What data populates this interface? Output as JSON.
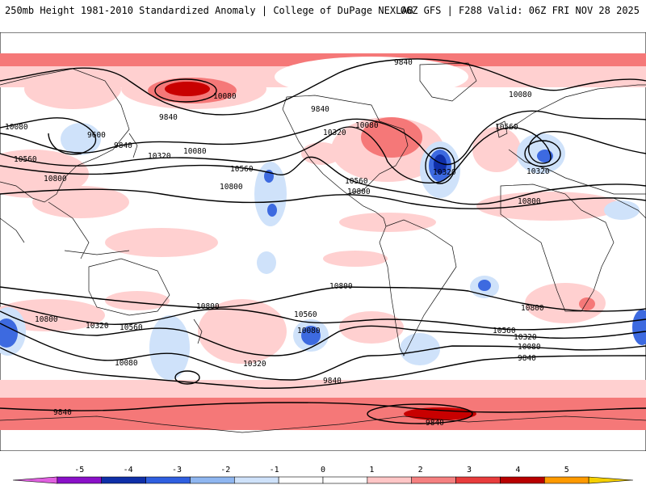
{
  "header": {
    "left": "250mb Height 1981-2010 Standardized Anomaly | College of DuPage NEXLAB",
    "right": "06Z GFS | F288 Valid: 06Z FRI NOV 28 2025"
  },
  "contours": {
    "labels": [
      {
        "id": "c1",
        "text": "9840"
      },
      {
        "id": "c2",
        "text": "10080"
      },
      {
        "id": "c3",
        "text": "9840"
      },
      {
        "id": "c4",
        "text": "10080"
      },
      {
        "id": "c5",
        "text": "9600"
      },
      {
        "id": "c6",
        "text": "9840"
      },
      {
        "id": "c7",
        "text": "10080"
      },
      {
        "id": "c8",
        "text": "10320"
      },
      {
        "id": "c9",
        "text": "10560"
      },
      {
        "id": "c10",
        "text": "10800"
      },
      {
        "id": "c11",
        "text": "10560"
      },
      {
        "id": "c12",
        "text": "10800"
      },
      {
        "id": "c13",
        "text": "9840"
      },
      {
        "id": "c14",
        "text": "10320"
      },
      {
        "id": "c15",
        "text": "10080"
      },
      {
        "id": "c16",
        "text": "10560"
      },
      {
        "id": "c17",
        "text": "10800"
      },
      {
        "id": "c18",
        "text": "10320"
      },
      {
        "id": "c19",
        "text": "10080"
      },
      {
        "id": "c20",
        "text": "10560"
      },
      {
        "id": "c21",
        "text": "10320"
      },
      {
        "id": "c22",
        "text": "10800"
      },
      {
        "id": "c23",
        "text": "10800"
      },
      {
        "id": "c24",
        "text": "10800"
      },
      {
        "id": "c25",
        "text": "10800"
      },
      {
        "id": "c26",
        "text": "10320"
      },
      {
        "id": "c27",
        "text": "10560"
      },
      {
        "id": "c28",
        "text": "10080"
      },
      {
        "id": "c29",
        "text": "10560"
      },
      {
        "id": "c30",
        "text": "10080"
      },
      {
        "id": "c31",
        "text": "10320"
      },
      {
        "id": "c32",
        "text": "9840"
      },
      {
        "id": "c33",
        "text": "10800"
      },
      {
        "id": "c34",
        "text": "10560"
      },
      {
        "id": "c35",
        "text": "10320"
      },
      {
        "id": "c36",
        "text": "10080"
      },
      {
        "id": "c37",
        "text": "9840"
      },
      {
        "id": "c38",
        "text": "9840"
      },
      {
        "id": "c39",
        "text": "9840"
      }
    ]
  },
  "colorbar": {
    "ticks": [
      "-5",
      "-4",
      "-3",
      "-2",
      "-1",
      "0",
      "1",
      "2",
      "3",
      "4",
      "5"
    ],
    "colors": [
      "#e060e0",
      "#8a10c8",
      "#0f2fa8",
      "#2f5fe0",
      "#8fb6f0",
      "#cfe2fa",
      "#ffffff",
      "#ffffff",
      "#ffc6c6",
      "#f58080",
      "#e83c3c",
      "#b80000",
      "#ff9a00",
      "#f5d000"
    ],
    "colors_note": "magenta,purple,dark blue,blue,light blue,pale blue,white,white,pink,salmon,red,dark red,orange,yellow"
  }
}
